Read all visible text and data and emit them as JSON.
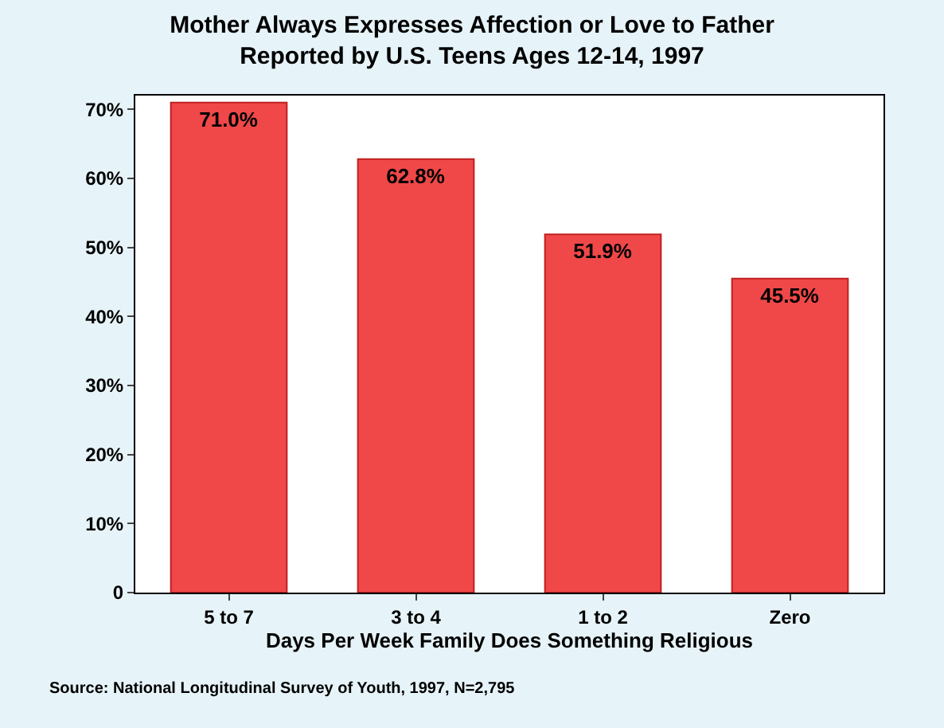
{
  "chart_data": {
    "type": "bar",
    "title": "Mother Always Expresses Affection or Love to Father\nReported by U.S. Teens Ages 12-14, 1997",
    "xlabel": "Days Per Week Family Does Something Religious",
    "categories": [
      "5 to 7",
      "3 to 4",
      "1 to 2",
      "Zero"
    ],
    "values": [
      71.0,
      62.8,
      51.9,
      45.5
    ],
    "value_labels": [
      "71.0%",
      "62.8%",
      "51.9%",
      "45.5%"
    ],
    "color": "#f04848",
    "ylim": [
      0,
      72
    ],
    "yticks": [
      0,
      {
        "value": 10,
        "label": "10%"
      },
      {
        "value": 20,
        "label": "20%"
      },
      {
        "value": 30,
        "label": "30%"
      },
      {
        "value": 40,
        "label": "40%"
      },
      {
        "value": 50,
        "label": "50%"
      },
      {
        "value": 60,
        "label": "60%"
      },
      {
        "value": 70,
        "label": "70%"
      }
    ],
    "grid": false,
    "annotations": [
      "Source: National Longitudinal Survey of Youth, 1997, N=2,795"
    ]
  }
}
